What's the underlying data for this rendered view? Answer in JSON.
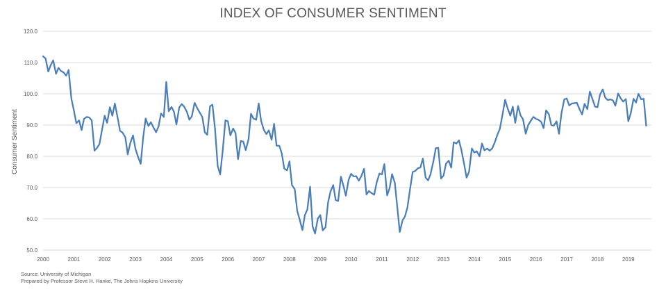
{
  "chart_data": {
    "type": "line",
    "title": "INDEX OF CONSUMER SENTIMENT",
    "ylabel": "Consumer Sentiment",
    "xlabel": "",
    "ylim": [
      50,
      120
    ],
    "yticks": [
      "50.0",
      "60.0",
      "70.0",
      "80.0",
      "90.0",
      "100.0",
      "110.0",
      "120.0"
    ],
    "xlim": [
      2000,
      2019.75
    ],
    "xticks": [
      "2000",
      "2001",
      "2002",
      "2003",
      "2004",
      "2005",
      "2006",
      "2007",
      "2008",
      "2009",
      "2010",
      "2011",
      "2012",
      "2013",
      "2014",
      "2015",
      "2016",
      "2017",
      "2018",
      "2019"
    ],
    "grid": true,
    "line_color": "#4a7ebb",
    "series": [
      {
        "points": [
          [
            2000.0,
            112.0
          ],
          [
            2000.08,
            111.3
          ],
          [
            2000.17,
            107.1
          ],
          [
            2000.25,
            109.2
          ],
          [
            2000.33,
            110.7
          ],
          [
            2000.42,
            106.4
          ],
          [
            2000.5,
            108.3
          ],
          [
            2000.58,
            107.3
          ],
          [
            2000.67,
            106.8
          ],
          [
            2000.75,
            105.8
          ],
          [
            2000.83,
            107.6
          ],
          [
            2000.92,
            98.4
          ],
          [
            2001.0,
            94.7
          ],
          [
            2001.08,
            90.6
          ],
          [
            2001.17,
            91.5
          ],
          [
            2001.25,
            88.4
          ],
          [
            2001.33,
            92.0
          ],
          [
            2001.42,
            92.6
          ],
          [
            2001.5,
            92.4
          ],
          [
            2001.58,
            91.5
          ],
          [
            2001.67,
            81.8
          ],
          [
            2001.75,
            82.7
          ],
          [
            2001.83,
            83.9
          ],
          [
            2001.92,
            88.8
          ],
          [
            2002.0,
            93.0
          ],
          [
            2002.08,
            90.7
          ],
          [
            2002.17,
            95.7
          ],
          [
            2002.25,
            93.0
          ],
          [
            2002.33,
            96.9
          ],
          [
            2002.42,
            92.4
          ],
          [
            2002.5,
            88.1
          ],
          [
            2002.58,
            87.6
          ],
          [
            2002.67,
            86.1
          ],
          [
            2002.75,
            80.6
          ],
          [
            2002.83,
            84.2
          ],
          [
            2002.92,
            86.7
          ],
          [
            2003.0,
            82.4
          ],
          [
            2003.08,
            79.9
          ],
          [
            2003.17,
            77.6
          ],
          [
            2003.25,
            86.0
          ],
          [
            2003.33,
            92.1
          ],
          [
            2003.42,
            89.7
          ],
          [
            2003.5,
            90.9
          ],
          [
            2003.58,
            89.3
          ],
          [
            2003.67,
            87.7
          ],
          [
            2003.75,
            89.6
          ],
          [
            2003.83,
            93.7
          ],
          [
            2003.92,
            92.6
          ],
          [
            2004.0,
            103.8
          ],
          [
            2004.08,
            94.4
          ],
          [
            2004.17,
            95.8
          ],
          [
            2004.25,
            94.2
          ],
          [
            2004.33,
            90.2
          ],
          [
            2004.42,
            95.6
          ],
          [
            2004.5,
            96.7
          ],
          [
            2004.58,
            95.9
          ],
          [
            2004.67,
            94.2
          ],
          [
            2004.75,
            91.7
          ],
          [
            2004.83,
            92.8
          ],
          [
            2004.92,
            97.1
          ],
          [
            2005.0,
            95.5
          ],
          [
            2005.08,
            94.1
          ],
          [
            2005.17,
            92.6
          ],
          [
            2005.25,
            87.7
          ],
          [
            2005.33,
            86.9
          ],
          [
            2005.42,
            96.0
          ],
          [
            2005.5,
            96.5
          ],
          [
            2005.58,
            89.1
          ],
          [
            2005.67,
            76.9
          ],
          [
            2005.75,
            74.2
          ],
          [
            2005.83,
            81.6
          ],
          [
            2005.92,
            91.5
          ],
          [
            2006.0,
            91.2
          ],
          [
            2006.08,
            86.7
          ],
          [
            2006.17,
            88.9
          ],
          [
            2006.25,
            87.4
          ],
          [
            2006.33,
            79.1
          ],
          [
            2006.42,
            84.9
          ],
          [
            2006.5,
            84.7
          ],
          [
            2006.58,
            82.0
          ],
          [
            2006.67,
            85.4
          ],
          [
            2006.75,
            93.6
          ],
          [
            2006.83,
            92.1
          ],
          [
            2006.92,
            91.7
          ],
          [
            2007.0,
            96.9
          ],
          [
            2007.08,
            91.3
          ],
          [
            2007.17,
            88.4
          ],
          [
            2007.25,
            87.1
          ],
          [
            2007.33,
            88.3
          ],
          [
            2007.42,
            85.3
          ],
          [
            2007.5,
            90.4
          ],
          [
            2007.58,
            83.4
          ],
          [
            2007.67,
            83.4
          ],
          [
            2007.75,
            80.9
          ],
          [
            2007.83,
            76.1
          ],
          [
            2007.92,
            75.5
          ],
          [
            2008.0,
            78.4
          ],
          [
            2008.08,
            70.8
          ],
          [
            2008.17,
            69.5
          ],
          [
            2008.25,
            62.6
          ],
          [
            2008.33,
            59.8
          ],
          [
            2008.42,
            56.4
          ],
          [
            2008.5,
            61.2
          ],
          [
            2008.58,
            63.0
          ],
          [
            2008.67,
            70.3
          ],
          [
            2008.75,
            57.6
          ],
          [
            2008.83,
            55.3
          ],
          [
            2008.92,
            60.1
          ],
          [
            2009.0,
            61.2
          ],
          [
            2009.08,
            56.3
          ],
          [
            2009.17,
            57.3
          ],
          [
            2009.25,
            65.1
          ],
          [
            2009.33,
            68.7
          ],
          [
            2009.42,
            70.8
          ],
          [
            2009.5,
            66.0
          ],
          [
            2009.58,
            65.7
          ],
          [
            2009.67,
            73.5
          ],
          [
            2009.75,
            70.6
          ],
          [
            2009.83,
            67.4
          ],
          [
            2009.92,
            72.5
          ],
          [
            2010.0,
            74.4
          ],
          [
            2010.08,
            73.6
          ],
          [
            2010.17,
            73.6
          ],
          [
            2010.25,
            72.2
          ],
          [
            2010.33,
            73.6
          ],
          [
            2010.42,
            76.0
          ],
          [
            2010.5,
            67.8
          ],
          [
            2010.58,
            68.9
          ],
          [
            2010.67,
            68.2
          ],
          [
            2010.75,
            67.7
          ],
          [
            2010.83,
            71.6
          ],
          [
            2010.92,
            74.5
          ],
          [
            2011.0,
            74.2
          ],
          [
            2011.08,
            77.5
          ],
          [
            2011.17,
            67.5
          ],
          [
            2011.25,
            69.8
          ],
          [
            2011.33,
            74.3
          ],
          [
            2011.42,
            71.5
          ],
          [
            2011.5,
            63.7
          ],
          [
            2011.58,
            55.8
          ],
          [
            2011.67,
            59.5
          ],
          [
            2011.75,
            60.8
          ],
          [
            2011.83,
            63.7
          ],
          [
            2011.92,
            69.9
          ],
          [
            2012.0,
            75.0
          ],
          [
            2012.08,
            75.3
          ],
          [
            2012.17,
            76.2
          ],
          [
            2012.25,
            76.4
          ],
          [
            2012.33,
            79.3
          ],
          [
            2012.42,
            73.2
          ],
          [
            2012.5,
            72.3
          ],
          [
            2012.58,
            74.3
          ],
          [
            2012.67,
            78.3
          ],
          [
            2012.75,
            82.6
          ],
          [
            2012.83,
            82.7
          ],
          [
            2012.92,
            72.9
          ],
          [
            2013.0,
            73.8
          ],
          [
            2013.08,
            77.6
          ],
          [
            2013.17,
            78.6
          ],
          [
            2013.25,
            76.4
          ],
          [
            2013.33,
            84.5
          ],
          [
            2013.42,
            84.1
          ],
          [
            2013.5,
            85.1
          ],
          [
            2013.58,
            82.1
          ],
          [
            2013.67,
            77.5
          ],
          [
            2013.75,
            73.2
          ],
          [
            2013.83,
            75.1
          ],
          [
            2013.92,
            82.5
          ],
          [
            2014.0,
            81.2
          ],
          [
            2014.08,
            81.6
          ],
          [
            2014.17,
            80.0
          ],
          [
            2014.25,
            84.1
          ],
          [
            2014.33,
            81.9
          ],
          [
            2014.42,
            82.5
          ],
          [
            2014.5,
            81.8
          ],
          [
            2014.58,
            82.5
          ],
          [
            2014.67,
            84.6
          ],
          [
            2014.75,
            86.9
          ],
          [
            2014.83,
            88.8
          ],
          [
            2014.92,
            93.6
          ],
          [
            2015.0,
            98.1
          ],
          [
            2015.08,
            95.4
          ],
          [
            2015.17,
            93.0
          ],
          [
            2015.25,
            95.9
          ],
          [
            2015.33,
            90.7
          ],
          [
            2015.42,
            96.1
          ],
          [
            2015.5,
            93.1
          ],
          [
            2015.58,
            91.9
          ],
          [
            2015.67,
            87.2
          ],
          [
            2015.75,
            90.0
          ],
          [
            2015.83,
            91.3
          ],
          [
            2015.92,
            92.6
          ],
          [
            2016.0,
            92.0
          ],
          [
            2016.08,
            91.7
          ],
          [
            2016.17,
            91.0
          ],
          [
            2016.25,
            89.0
          ],
          [
            2016.33,
            94.7
          ],
          [
            2016.42,
            93.5
          ],
          [
            2016.5,
            90.0
          ],
          [
            2016.58,
            89.8
          ],
          [
            2016.67,
            91.2
          ],
          [
            2016.75,
            87.2
          ],
          [
            2016.83,
            93.8
          ],
          [
            2016.92,
            98.2
          ],
          [
            2017.0,
            98.5
          ],
          [
            2017.08,
            96.3
          ],
          [
            2017.17,
            96.9
          ],
          [
            2017.25,
            97.0
          ],
          [
            2017.33,
            97.1
          ],
          [
            2017.42,
            95.0
          ],
          [
            2017.5,
            93.4
          ],
          [
            2017.58,
            96.8
          ],
          [
            2017.67,
            95.1
          ],
          [
            2017.75,
            100.7
          ],
          [
            2017.83,
            98.5
          ],
          [
            2017.92,
            95.9
          ],
          [
            2018.0,
            95.7
          ],
          [
            2018.08,
            99.7
          ],
          [
            2018.17,
            101.4
          ],
          [
            2018.25,
            98.8
          ],
          [
            2018.33,
            98.0
          ],
          [
            2018.42,
            98.2
          ],
          [
            2018.5,
            97.9
          ],
          [
            2018.58,
            96.2
          ],
          [
            2018.67,
            100.1
          ],
          [
            2018.75,
            98.6
          ],
          [
            2018.83,
            97.5
          ],
          [
            2018.92,
            98.3
          ],
          [
            2019.0,
            91.2
          ],
          [
            2019.08,
            93.8
          ],
          [
            2019.17,
            98.4
          ],
          [
            2019.25,
            97.2
          ],
          [
            2019.33,
            100.0
          ],
          [
            2019.42,
            98.2
          ],
          [
            2019.5,
            98.4
          ],
          [
            2019.58,
            89.8
          ]
        ]
      }
    ]
  },
  "notes": {
    "source": "Source: University of Michigan",
    "prepared_by": "Prepared by Professor Steve H. Hanke, The Johns Hopkins University"
  }
}
